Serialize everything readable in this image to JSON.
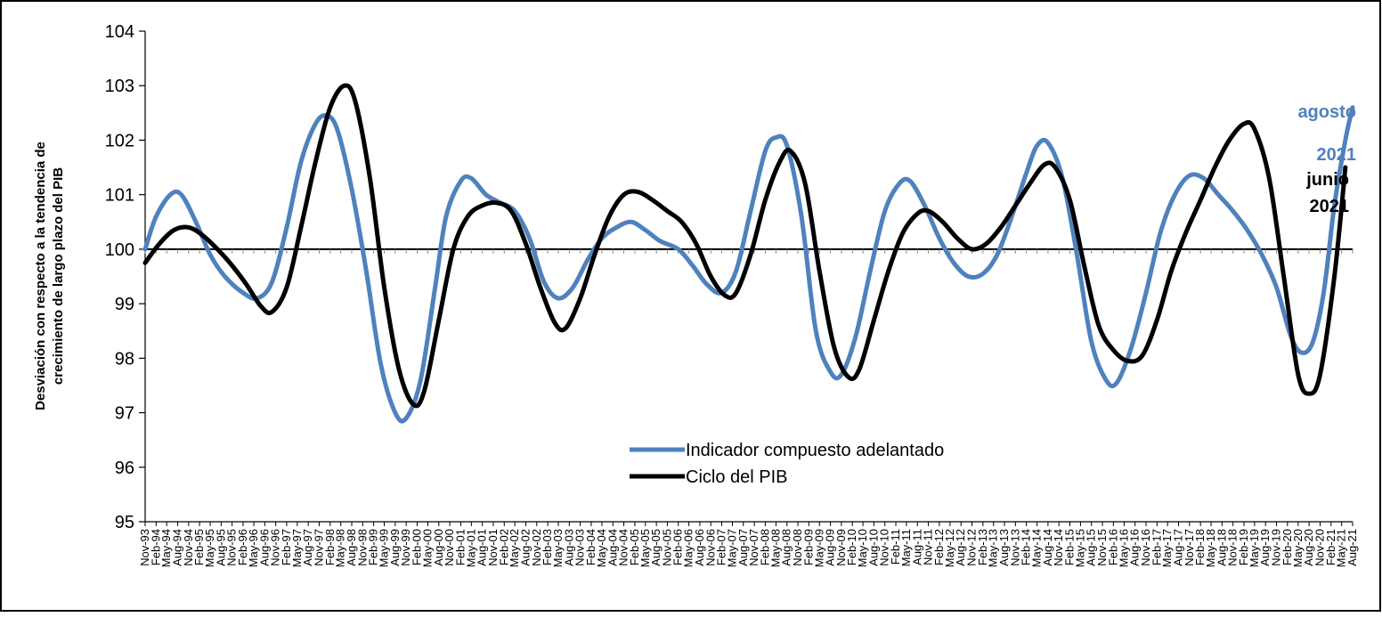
{
  "chart_data": {
    "type": "line",
    "title": "",
    "ylabel_lines": [
      "Desviación con respecto a la tendencia de",
      "crecimiento de largo plazo del PIB"
    ],
    "xlabel": "",
    "ylim": [
      95,
      104
    ],
    "yticks": [
      95,
      96,
      97,
      98,
      99,
      100,
      101,
      102,
      103,
      104
    ],
    "baseline": 100,
    "grid": false,
    "legend_position": "bottom-center",
    "x_start": "Nov-93",
    "x_end": "Aug-21",
    "x_labels": [
      "Nov-93",
      "Feb-94",
      "May-94",
      "Aug-94",
      "Nov-94",
      "Feb-95",
      "May-95",
      "Aug-95",
      "Nov-95",
      "Feb-96",
      "May-96",
      "Aug-96",
      "Nov-96",
      "Feb-97",
      "May-97",
      "Aug-97",
      "Nov-97",
      "Feb-98",
      "May-98",
      "Aug-98",
      "Nov-98",
      "Feb-99",
      "May-99",
      "Aug-99",
      "Nov-99",
      "Feb-00",
      "May-00",
      "Aug-00",
      "Nov-00",
      "Feb-01",
      "May-01",
      "Aug-01",
      "Nov-01",
      "Feb-02",
      "May-02",
      "Aug-02",
      "Nov-02",
      "Feb-03",
      "May-03",
      "Aug-03",
      "Nov-03",
      "Feb-04",
      "May-04",
      "Aug-04",
      "Nov-04",
      "Feb-05",
      "May-05",
      "Aug-05",
      "Nov-05",
      "Feb-06",
      "May-06",
      "Aug-06",
      "Nov-06",
      "Feb-07",
      "May-07",
      "Aug-07",
      "Nov-07",
      "Feb-08",
      "May-08",
      "Aug-08",
      "Nov-08",
      "Feb-09",
      "May-09",
      "Aug-09",
      "Nov-09",
      "Feb-10",
      "May-10",
      "Aug-10",
      "Nov-10",
      "Feb-11",
      "May-11",
      "Aug-11",
      "Nov-11",
      "Feb-12",
      "May-12",
      "Aug-12",
      "Nov-12",
      "Feb-13",
      "May-13",
      "Aug-13",
      "Nov-13",
      "Feb-14",
      "May-14",
      "Aug-14",
      "Nov-14",
      "Feb-15",
      "May-15",
      "Aug-15",
      "Nov-15",
      "Feb-16",
      "May-16",
      "Aug-16",
      "Nov-16",
      "Feb-17",
      "May-17",
      "Aug-17",
      "Nov-17",
      "Feb-18",
      "May-18",
      "Aug-18",
      "Nov-18",
      "Feb-19",
      "May-19",
      "Aug-19",
      "Nov-19",
      "Feb-20",
      "May-20",
      "Aug-20",
      "Nov-20",
      "Feb-21",
      "May-21",
      "Aug-21"
    ],
    "series": [
      {
        "name": "Indicador compuesto adelantado",
        "color": "#4F81BD",
        "points": [
          [
            "1993-11-01",
            100.0
          ],
          [
            "1994-02-01",
            100.6
          ],
          [
            "1994-06-01",
            101.0
          ],
          [
            "1994-09-01",
            101.0
          ],
          [
            "1995-01-01",
            100.5
          ],
          [
            "1995-05-01",
            99.9
          ],
          [
            "1995-09-01",
            99.5
          ],
          [
            "1996-02-01",
            99.2
          ],
          [
            "1996-06-01",
            99.1
          ],
          [
            "1996-10-01",
            99.4
          ],
          [
            "1997-02-01",
            100.4
          ],
          [
            "1997-06-01",
            101.6
          ],
          [
            "1997-10-01",
            102.3
          ],
          [
            "1998-01-01",
            102.45
          ],
          [
            "1998-04-01",
            102.2
          ],
          [
            "1998-08-01",
            101.1
          ],
          [
            "1998-12-01",
            99.6
          ],
          [
            "1999-04-01",
            97.9
          ],
          [
            "1999-08-01",
            97.0
          ],
          [
            "1999-11-01",
            96.9
          ],
          [
            "2000-03-01",
            97.6
          ],
          [
            "2000-07-01",
            99.3
          ],
          [
            "2000-10-01",
            100.6
          ],
          [
            "2001-02-01",
            101.25
          ],
          [
            "2001-05-01",
            101.3
          ],
          [
            "2001-09-01",
            101.0
          ],
          [
            "2002-01-01",
            100.85
          ],
          [
            "2002-05-01",
            100.7
          ],
          [
            "2002-09-01",
            100.2
          ],
          [
            "2003-01-01",
            99.4
          ],
          [
            "2003-05-01",
            99.1
          ],
          [
            "2003-09-01",
            99.3
          ],
          [
            "2004-01-01",
            99.8
          ],
          [
            "2004-05-01",
            100.2
          ],
          [
            "2004-09-01",
            100.4
          ],
          [
            "2005-01-01",
            100.5
          ],
          [
            "2005-05-01",
            100.35
          ],
          [
            "2005-09-01",
            100.15
          ],
          [
            "2006-02-01",
            100.0
          ],
          [
            "2006-06-01",
            99.7
          ],
          [
            "2006-10-01",
            99.35
          ],
          [
            "2007-02-01",
            99.2
          ],
          [
            "2007-06-01",
            99.6
          ],
          [
            "2007-10-01",
            100.7
          ],
          [
            "2008-02-01",
            101.8
          ],
          [
            "2008-05-01",
            102.05
          ],
          [
            "2008-08-01",
            101.9
          ],
          [
            "2008-12-01",
            100.6
          ],
          [
            "2009-04-01",
            98.5
          ],
          [
            "2009-08-01",
            97.75
          ],
          [
            "2009-11-01",
            97.7
          ],
          [
            "2010-03-01",
            98.4
          ],
          [
            "2010-07-01",
            99.6
          ],
          [
            "2010-11-01",
            100.7
          ],
          [
            "2011-03-01",
            101.2
          ],
          [
            "2011-06-01",
            101.25
          ],
          [
            "2011-10-01",
            100.8
          ],
          [
            "2012-02-01",
            100.2
          ],
          [
            "2012-06-01",
            99.75
          ],
          [
            "2012-10-01",
            99.5
          ],
          [
            "2013-02-01",
            99.55
          ],
          [
            "2013-06-01",
            99.9
          ],
          [
            "2013-10-01",
            100.6
          ],
          [
            "2014-02-01",
            101.4
          ],
          [
            "2014-05-01",
            101.9
          ],
          [
            "2014-08-01",
            101.95
          ],
          [
            "2014-12-01",
            101.3
          ],
          [
            "2015-04-01",
            99.9
          ],
          [
            "2015-08-01",
            98.3
          ],
          [
            "2015-12-01",
            97.6
          ],
          [
            "2016-03-01",
            97.55
          ],
          [
            "2016-07-01",
            98.2
          ],
          [
            "2016-11-01",
            99.2
          ],
          [
            "2017-03-01",
            100.3
          ],
          [
            "2017-07-01",
            101.0
          ],
          [
            "2017-11-01",
            101.35
          ],
          [
            "2018-03-01",
            101.3
          ],
          [
            "2018-07-01",
            101.0
          ],
          [
            "2018-11-01",
            100.7
          ],
          [
            "2019-03-01",
            100.35
          ],
          [
            "2019-07-01",
            99.9
          ],
          [
            "2019-11-01",
            99.3
          ],
          [
            "2020-03-01",
            98.4
          ],
          [
            "2020-06-01",
            98.1
          ],
          [
            "2020-09-01",
            98.3
          ],
          [
            "2020-12-01",
            99.2
          ],
          [
            "2021-03-01",
            100.8
          ],
          [
            "2021-06-01",
            102.0
          ],
          [
            "2021-08-01",
            102.6
          ]
        ]
      },
      {
        "name": "Ciclo del PIB",
        "color": "#000000",
        "points": [
          [
            "1993-11-01",
            99.75
          ],
          [
            "1994-03-01",
            100.1
          ],
          [
            "1994-07-01",
            100.35
          ],
          [
            "1994-11-01",
            100.4
          ],
          [
            "1995-03-01",
            100.25
          ],
          [
            "1995-07-01",
            100.0
          ],
          [
            "1995-11-01",
            99.7
          ],
          [
            "1996-03-01",
            99.35
          ],
          [
            "1996-07-01",
            98.95
          ],
          [
            "1996-10-01",
            98.85
          ],
          [
            "1997-02-01",
            99.3
          ],
          [
            "1997-06-01",
            100.4
          ],
          [
            "1997-10-01",
            101.6
          ],
          [
            "1998-02-01",
            102.6
          ],
          [
            "1998-06-01",
            103.0
          ],
          [
            "1998-09-01",
            102.7
          ],
          [
            "1999-01-01",
            101.3
          ],
          [
            "1999-05-01",
            99.3
          ],
          [
            "1999-09-01",
            97.8
          ],
          [
            "2000-01-01",
            97.15
          ],
          [
            "2000-04-01",
            97.4
          ],
          [
            "2000-08-01",
            98.7
          ],
          [
            "2000-12-01",
            100.0
          ],
          [
            "2001-04-01",
            100.6
          ],
          [
            "2001-08-01",
            100.8
          ],
          [
            "2001-12-01",
            100.85
          ],
          [
            "2002-04-01",
            100.7
          ],
          [
            "2002-08-01",
            100.1
          ],
          [
            "2002-12-01",
            99.3
          ],
          [
            "2003-04-01",
            98.65
          ],
          [
            "2003-07-01",
            98.55
          ],
          [
            "2003-11-01",
            99.1
          ],
          [
            "2004-03-01",
            99.9
          ],
          [
            "2004-07-01",
            100.6
          ],
          [
            "2004-11-01",
            101.0
          ],
          [
            "2005-03-01",
            101.05
          ],
          [
            "2005-07-01",
            100.9
          ],
          [
            "2005-11-01",
            100.7
          ],
          [
            "2006-03-01",
            100.5
          ],
          [
            "2006-07-01",
            100.1
          ],
          [
            "2006-11-01",
            99.5
          ],
          [
            "2007-03-01",
            99.15
          ],
          [
            "2007-06-01",
            99.2
          ],
          [
            "2007-10-01",
            99.9
          ],
          [
            "2008-02-01",
            100.9
          ],
          [
            "2008-06-01",
            101.6
          ],
          [
            "2008-09-01",
            101.8
          ],
          [
            "2009-01-01",
            101.2
          ],
          [
            "2009-05-01",
            99.6
          ],
          [
            "2009-09-01",
            98.2
          ],
          [
            "2010-01-01",
            97.65
          ],
          [
            "2010-04-01",
            97.8
          ],
          [
            "2010-08-01",
            98.7
          ],
          [
            "2010-12-01",
            99.6
          ],
          [
            "2011-04-01",
            100.3
          ],
          [
            "2011-08-01",
            100.65
          ],
          [
            "2011-11-01",
            100.7
          ],
          [
            "2012-03-01",
            100.5
          ],
          [
            "2012-07-01",
            100.2
          ],
          [
            "2012-11-01",
            100.0
          ],
          [
            "2013-03-01",
            100.1
          ],
          [
            "2013-07-01",
            100.4
          ],
          [
            "2013-11-01",
            100.8
          ],
          [
            "2014-03-01",
            101.2
          ],
          [
            "2014-07-01",
            101.55
          ],
          [
            "2014-10-01",
            101.5
          ],
          [
            "2015-02-01",
            100.9
          ],
          [
            "2015-06-01",
            99.7
          ],
          [
            "2015-10-01",
            98.6
          ],
          [
            "2016-02-01",
            98.15
          ],
          [
            "2016-06-01",
            97.95
          ],
          [
            "2016-10-01",
            98.05
          ],
          [
            "2017-02-01",
            98.7
          ],
          [
            "2017-06-01",
            99.6
          ],
          [
            "2017-10-01",
            100.3
          ],
          [
            "2018-02-01",
            100.9
          ],
          [
            "2018-06-01",
            101.5
          ],
          [
            "2018-10-01",
            102.0
          ],
          [
            "2019-02-01",
            102.3
          ],
          [
            "2019-05-01",
            102.2
          ],
          [
            "2019-09-01",
            101.3
          ],
          [
            "2020-01-01",
            99.5
          ],
          [
            "2020-05-01",
            97.7
          ],
          [
            "2020-08-01",
            97.35
          ],
          [
            "2020-11-01",
            97.7
          ],
          [
            "2021-03-01",
            99.5
          ],
          [
            "2021-06-01",
            101.5
          ]
        ]
      }
    ],
    "annotations": [
      {
        "lines": [
          "agosto",
          "2021"
        ],
        "color": "#4F81BD"
      },
      {
        "lines": [
          "junio",
          "2021"
        ],
        "color": "#000000"
      }
    ]
  }
}
